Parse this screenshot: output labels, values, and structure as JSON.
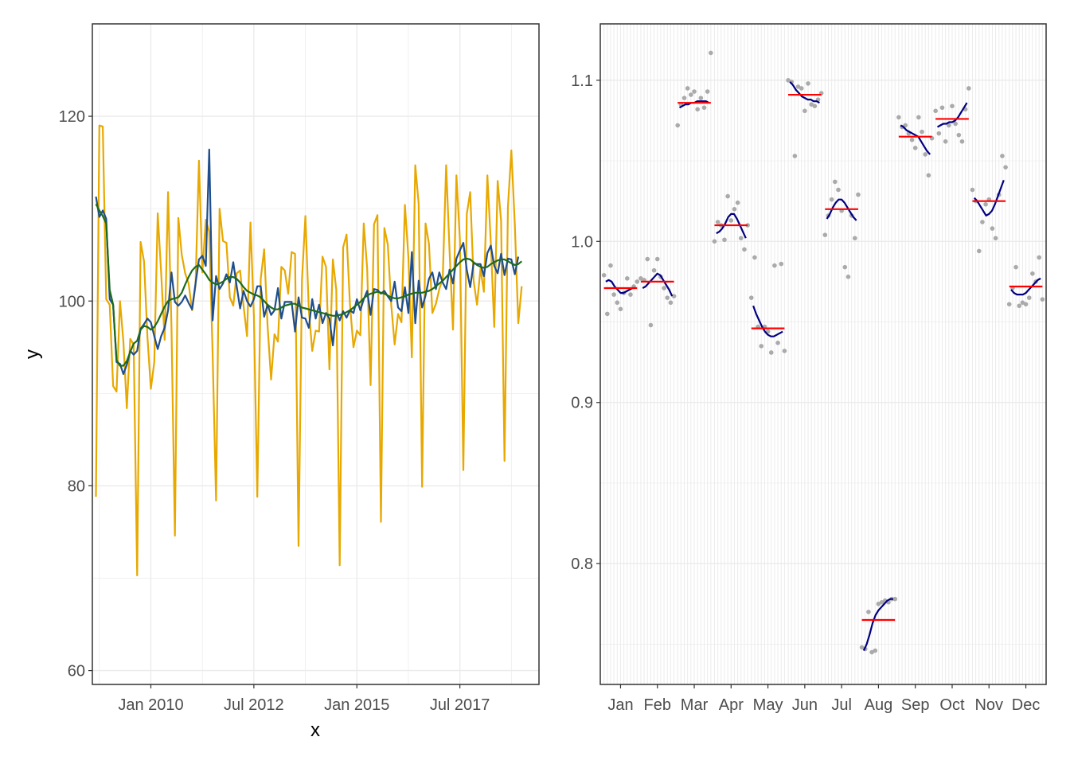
{
  "chart_data": [
    {
      "type": "line",
      "xlabel": "x",
      "ylabel": "y",
      "ylim": [
        58.5,
        130
      ],
      "xlim": [
        2008.58,
        2019.42
      ],
      "x_ticks": [
        {
          "label": "Jan 2010",
          "value": 2010.0
        },
        {
          "label": "Jul 2012",
          "value": 2012.5
        },
        {
          "label": "Jan 2015",
          "value": 2015.0
        },
        {
          "label": "Jul 2017",
          "value": 2017.5
        }
      ],
      "y_ticks": [
        60,
        80,
        100,
        120
      ],
      "x_start": 2008.667,
      "x_step": 0.0833333,
      "colors": {
        "raw": "#E7A800",
        "seasonally_adjusted": "#1F4E8C",
        "trend": "#1C6B1C"
      },
      "series": [
        {
          "name": "raw",
          "values": [
            78.8,
            119,
            118.9,
            100.2,
            99.6,
            90.8,
            90.2,
            100,
            95.6,
            88.4,
            95.9,
            95.3,
            70.3,
            106.4,
            104.3,
            96.1,
            90.5,
            93.4,
            109.5,
            103.1,
            95.8,
            111.8,
            97.1,
            74.6,
            109,
            105,
            103,
            101.9,
            99,
            101.7,
            115.2,
            103.1,
            108.8,
            107.5,
            94.2,
            78.4,
            110,
            106.5,
            106.3,
            100.4,
            99.5,
            103,
            103.3,
            99.5,
            96.2,
            108.5,
            98.4,
            78.8,
            102.4,
            105.6,
            97.3,
            91.5,
            96.4,
            95.6,
            103.7,
            103.3,
            100.8,
            105.3,
            105.1,
            73.5,
            102.3,
            109.2,
            99,
            94.6,
            96.8,
            96.7,
            104.8,
            103.7,
            92.6,
            104.5,
            101.2,
            71.4,
            105.8,
            107.2,
            99.6,
            95,
            96.8,
            96.3,
            108.4,
            103.5,
            90.9,
            108.3,
            109.3,
            76.1,
            107.9,
            106.1,
            99.6,
            95.3,
            98.6,
            97.7,
            110.4,
            104.7,
            93.9,
            114.7,
            110.5,
            79.9,
            108.4,
            106.2,
            98.7,
            99.7,
            101.3,
            102.4,
            114.7,
            105.4,
            96.9,
            113.6,
            106.6,
            81.7,
            109.4,
            111.8,
            102.2,
            99.6,
            103.5,
            101,
            113.6,
            106.3,
            97.2,
            113,
            108.7,
            82.7,
            110.2,
            116.3,
            108.2,
            97.6,
            101.6
          ]
        },
        {
          "name": "seasonally_adjusted",
          "values": [
            111.3,
            109.1,
            109.8,
            108.9,
            100.2,
            99.6,
            93.4,
            93.2,
            92.1,
            93.1,
            94.6,
            94.2,
            94.6,
            97,
            97.5,
            98.1,
            97.7,
            96.2,
            94.8,
            96.2,
            97.1,
            99,
            103.1,
            99.9,
            99.5,
            99.9,
            100.6,
            99.8,
            99.1,
            101.9,
            104.5,
            104.9,
            103.8,
            116.4,
            97.9,
            102.7,
            101.3,
            101.9,
            102.9,
            102,
            104.2,
            101.6,
            99.2,
            101.1,
            100,
            99.4,
            100.2,
            101.6,
            101.6,
            98.3,
            99.6,
            98.5,
            99,
            101.4,
            98.1,
            99.9,
            99.9,
            99.9,
            96.7,
            100.4,
            98.2,
            98.1,
            97.1,
            100.2,
            98.1,
            99.6,
            97.6,
            98.7,
            98.1,
            95.2,
            98.9,
            97.9,
            98.9,
            98.2,
            99,
            98.7,
            100.2,
            99,
            100.2,
            101.1,
            98.5,
            101.3,
            101.2,
            100.8,
            101.1,
            100.5,
            100,
            102.1,
            99.3,
            98.9,
            101.5,
            98.7,
            105.3,
            97.6,
            102.2,
            99.3,
            100.6,
            102.4,
            103.1,
            101.3,
            103.1,
            102,
            101.3,
            103.4,
            101.9,
            104.6,
            105.5,
            106.3,
            103.4,
            101.5,
            104.1,
            104,
            104,
            102.7,
            105.2,
            106,
            103.8,
            103,
            105.1,
            102.8,
            104.6,
            104.5,
            102.9,
            104.8
          ]
        },
        {
          "name": "trend",
          "values": [
            110.5,
            109.8,
            109.2,
            108.4,
            101.2,
            99.6,
            93.6,
            93,
            93,
            93.5,
            94.5,
            95.4,
            95.7,
            96.9,
            97.3,
            97.2,
            96.9,
            97.2,
            97.8,
            98.6,
            99.4,
            100,
            100.2,
            100.3,
            100.4,
            100.9,
            101.8,
            102.6,
            103.3,
            103.7,
            103.9,
            103.4,
            102.9,
            102.3,
            102,
            101.8,
            101.9,
            102.1,
            102.4,
            102.6,
            102.6,
            102.4,
            102,
            101.5,
            101.1,
            100.9,
            100.7,
            100.6,
            100.4,
            100,
            99.6,
            99.3,
            99.1,
            99.1,
            99.3,
            99.5,
            99.6,
            99.7,
            99.7,
            99.5,
            99.3,
            99.2,
            99.1,
            99,
            98.9,
            98.8,
            98.7,
            98.6,
            98.5,
            98.4,
            98.4,
            98.5,
            98.6,
            98.8,
            99,
            99.3,
            99.6,
            99.9,
            100.3,
            100.6,
            100.8,
            100.9,
            101,
            100.9,
            100.8,
            100.6,
            100.4,
            100.3,
            100.3,
            100.4,
            100.5,
            100.7,
            100.8,
            100.9,
            100.9,
            100.9,
            101,
            101.1,
            101.3,
            101.6,
            101.9,
            102.2,
            102.6,
            103,
            103.4,
            103.8,
            104.2,
            104.5,
            104.6,
            104.5,
            104.2,
            103.9,
            103.7,
            103.6,
            103.7,
            104,
            104.2,
            104.4,
            104.5,
            104.5,
            104.3,
            104.1,
            103.9,
            104,
            104.3
          ]
        }
      ]
    },
    {
      "type": "scatter",
      "xlabel": "",
      "ylabel": "",
      "ylim": [
        0.725,
        1.135
      ],
      "y_ticks": [
        0.8,
        0.9,
        1.0,
        1.1
      ],
      "y_tick_labels": [
        "0.8",
        "0.9",
        "1.0",
        "1.1"
      ],
      "xlim": [
        0.45,
        12.55
      ],
      "months": [
        "Jan",
        "Feb",
        "Mar",
        "Apr",
        "May",
        "Jun",
        "Jul",
        "Aug",
        "Sep",
        "Oct",
        "Nov",
        "Dec"
      ],
      "colors": {
        "points": "#AAAAAA",
        "mean": "#FF0000",
        "curve": "#000080"
      },
      "means": [
        0.971,
        0.975,
        1.086,
        1.01,
        0.946,
        1.091,
        1.02,
        0.765,
        1.065,
        1.076,
        1.025,
        0.972
      ],
      "points": [
        [
          0.979,
          0.955,
          0.985,
          0.967,
          0.962,
          0.958,
          0.968,
          0.977,
          0.967,
          0.972,
          0.975
        ],
        [
          0.977,
          0.976,
          0.989,
          0.948,
          0.982,
          0.989,
          0.978,
          0.971,
          0.965,
          0.962,
          0.966
        ],
        [
          1.072,
          1.085,
          1.089,
          1.095,
          1.091,
          1.093,
          1.082,
          1.089,
          1.083,
          1.093,
          1.117
        ],
        [
          1.0,
          1.012,
          1.01,
          1.001,
          1.028,
          1.013,
          1.02,
          1.024,
          1.002,
          0.995,
          1.01
        ],
        [
          0.965,
          0.99,
          0.947,
          0.935,
          0.947,
          0.944,
          0.931,
          0.985,
          0.937,
          0.986,
          0.932
        ],
        [
          1.1,
          1.099,
          1.053,
          1.096,
          1.095,
          1.081,
          1.098,
          1.085,
          1.084,
          1.088,
          1.092
        ],
        [
          1.004,
          1.016,
          1.026,
          1.037,
          1.032,
          1.019,
          0.984,
          0.978,
          1.016,
          1.002,
          1.029
        ],
        [
          0.748,
          0.747,
          0.77,
          0.745,
          0.746,
          0.775,
          0.776,
          0.777,
          0.776,
          0.778,
          0.778
        ],
        [
          1.077,
          1.071,
          1.072,
          1.067,
          1.063,
          1.058,
          1.077,
          1.068,
          1.054,
          1.041,
          1.064
        ],
        [
          1.081,
          1.067,
          1.083,
          1.062,
          1.072,
          1.084,
          1.073,
          1.066,
          1.062,
          1.082,
          1.095
        ],
        [
          1.032,
          1.025,
          0.994,
          1.012,
          1.023,
          1.026,
          1.008,
          1.002,
          1.029,
          1.053,
          1.046
        ],
        [
          0.961,
          0.971,
          0.984,
          0.96,
          0.962,
          0.961,
          0.965,
          0.98,
          0.975,
          0.99,
          0.964
        ]
      ],
      "curves": [
        [
          0.975,
          0.976,
          0.975,
          0.972,
          0.97,
          0.968,
          0.968,
          0.969,
          0.97,
          0.971,
          0.971
        ],
        [
          0.971,
          0.972,
          0.974,
          0.976,
          0.978,
          0.98,
          0.979,
          0.976,
          0.973,
          0.97,
          0.966
        ],
        [
          1.083,
          1.084,
          1.085,
          1.085,
          1.086,
          1.086,
          1.087,
          1.087,
          1.087,
          1.087,
          1.086
        ],
        [
          1.005,
          1.006,
          1.008,
          1.011,
          1.015,
          1.017,
          1.017,
          1.014,
          1.01,
          1.006,
          1.002
        ],
        [
          0.96,
          0.955,
          0.951,
          0.947,
          0.944,
          0.942,
          0.941,
          0.941,
          0.942,
          0.943,
          0.944
        ],
        [
          1.099,
          1.097,
          1.094,
          1.092,
          1.09,
          1.089,
          1.088,
          1.088,
          1.087,
          1.087,
          1.086
        ],
        [
          1.014,
          1.017,
          1.021,
          1.024,
          1.026,
          1.026,
          1.024,
          1.021,
          1.018,
          1.015,
          1.013
        ],
        [
          0.746,
          0.75,
          0.756,
          0.763,
          0.768,
          0.771,
          0.773,
          0.775,
          0.777,
          0.778,
          0.778
        ],
        [
          1.072,
          1.071,
          1.069,
          1.068,
          1.067,
          1.066,
          1.065,
          1.062,
          1.059,
          1.056,
          1.054
        ],
        [
          1.071,
          1.072,
          1.073,
          1.073,
          1.074,
          1.074,
          1.075,
          1.077,
          1.08,
          1.083,
          1.086
        ],
        [
          1.027,
          1.025,
          1.022,
          1.019,
          1.016,
          1.017,
          1.019,
          1.023,
          1.028,
          1.033,
          1.038
        ],
        [
          0.97,
          0.968,
          0.967,
          0.967,
          0.967,
          0.968,
          0.97,
          0.972,
          0.974,
          0.976,
          0.977
        ]
      ]
    }
  ]
}
